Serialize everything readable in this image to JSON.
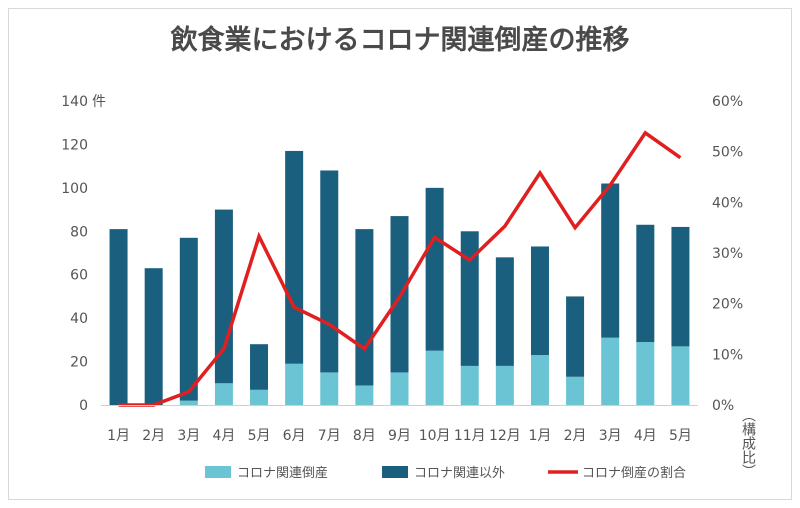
{
  "chart_data": {
    "type": "bar",
    "title": "飲食業におけるコロナ関連倒産の推移",
    "categories": [
      "1月",
      "2月",
      "3月",
      "4月",
      "5月",
      "6月",
      "7月",
      "8月",
      "9月",
      "10月",
      "11月",
      "12月",
      "1月",
      "2月",
      "3月",
      "4月",
      "5月"
    ],
    "series": [
      {
        "name": "コロナ関連倒産",
        "type": "bar",
        "stack": "total",
        "color": "#6bc4d4",
        "values": [
          0,
          0,
          2,
          10,
          7,
          19,
          15,
          9,
          15,
          25,
          18,
          18,
          23,
          13,
          31,
          29,
          27
        ]
      },
      {
        "name": "コロナ関連以外",
        "type": "bar",
        "stack": "total",
        "color": "#1a5f7e",
        "values": [
          81,
          63,
          75,
          80,
          21,
          98,
          93,
          72,
          72,
          75,
          62,
          50,
          50,
          37,
          71,
          54,
          55
        ]
      },
      {
        "name": "コロナ倒産の割合",
        "type": "line",
        "axis": "right",
        "color": "#e02020",
        "values": [
          0,
          0,
          2.6,
          11.1,
          33.3,
          19.3,
          15.9,
          11.1,
          21.3,
          33.1,
          28.6,
          35.3,
          45.8,
          35.0,
          43.4,
          53.7,
          48.8
        ]
      }
    ],
    "ylim": [
      0,
      140
    ],
    "y_ticks": [
      "0",
      "20",
      "40",
      "60",
      "80",
      "100",
      "120",
      "140"
    ],
    "y_unit": "件",
    "y2lim": [
      0,
      60
    ],
    "y2_ticks": [
      "0%",
      "10%",
      "20%",
      "30%",
      "40%",
      "50%",
      "60%"
    ],
    "y2label": "（構成比）",
    "grid": false,
    "legend_position": "bottom"
  }
}
